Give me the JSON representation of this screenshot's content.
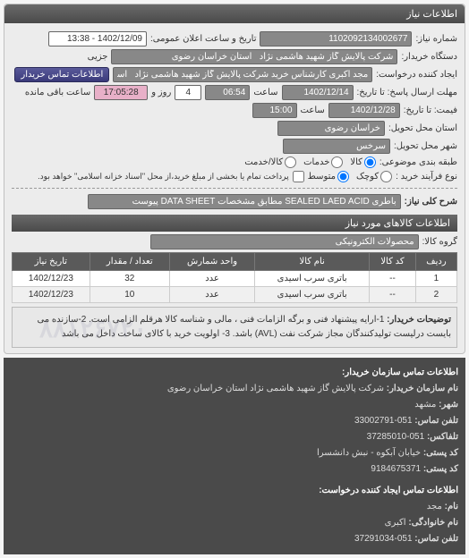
{
  "header": {
    "title": "اطلاعات نیاز"
  },
  "fields": {
    "req_no_label": "شماره نیاز:",
    "req_no": "1102092134002677",
    "announce_label": "تاریخ و ساعت اعلان عمومی:",
    "announce": "1402/12/09 - 13:38",
    "buyer_org_label": "دستگاه خریدار:",
    "buyer_org": "شرکت پالایش گاز شهید هاشمی نژاد   استان خراسان رضوی",
    "requester_label": "ایجاد کننده درخواست:",
    "requester": "مجد اکبری کارشناس خرید شرکت پالایش گاز شهید هاشمی نژاد   استان خرا",
    "contact_btn": "اطلاعات تماس خریدار",
    "deadline_resp_label": "مهلت ارسال پاسخ: تا تاریخ:",
    "deadline_resp_date": "1402/12/14",
    "deadline_resp_time_label": "ساعت",
    "deadline_resp_time": "06:54",
    "days_label": "روز و",
    "days": "4",
    "remain_label": "ساعت باقی مانده",
    "remain_time": "17:05:28",
    "deadline_price_label": "فیمت: تا تاریخ:",
    "deadline_price_date": "1402/12/28",
    "deadline_price_time_label": "ساعت",
    "deadline_price_time": "15:00",
    "delivery_province_label": "استان محل تحویل:",
    "delivery_province": "خراسان رضوی",
    "delivery_city_label": "شهر محل تحویل:",
    "delivery_city": "سرخس",
    "class_label": "طبقه بندی موضوعی:",
    "opt_kala": "کالا",
    "opt_khadamat": "خدمات",
    "opt_kala_khadamat": "کالا/خدمت",
    "process_label": "نوع فرآیند خرید :",
    "opt_small": "کوچک",
    "opt_medium": "متوسط",
    "process_note": "پرداخت تمام یا بخشی از مبلغ خرید،از محل \"اسناد خزانه اسلامی\" خواهد بود."
  },
  "need_title": {
    "label": "شرح کلی نیاز:",
    "value": "باطری SEALED LAED ACID مطابق مشخصات DATA SHEET پیوست"
  },
  "goods": {
    "section_title": "اطلاعات کالاهای مورد نیاز",
    "group_label": "گروه کالا:",
    "group_value": "محصولات الکترونیکی",
    "cols": [
      "ردیف",
      "کد کالا",
      "نام کالا",
      "واحد شمارش",
      "تعداد / مقدار",
      "تاریخ نیاز"
    ],
    "rows": [
      [
        "1",
        "--",
        "باتری سرب اسیدی",
        "عدد",
        "32",
        "1402/12/23"
      ],
      [
        "2",
        "--",
        "باتری سرب اسیدی",
        "عدد",
        "10",
        "1402/12/23"
      ]
    ]
  },
  "desc": {
    "label": "توضیحات خریدار:",
    "text": "1-ارایه پیشنهاد فنی و برگه الزامات فنی ، مالی و شناسه کالا هرقلم الزامی است. 2-سازنده می بایست درلیست تولیدکنندگان مجاز شرکت نفت (AVL) باشد. 3- اولویت خرید با کالای ساخت داخل می باشد"
  },
  "contact": {
    "title": "اطلاعات تماس سازمان خریدار:",
    "org_label": "نام سازمان خریدار:",
    "org": "شرکت پالایش گاز شهید هاشمی نژاد استان خراسان رضوی",
    "city_label": "شهر:",
    "city": "مشهد",
    "tel_label": "تلفن تماس:",
    "tel": "051-33002791",
    "fax_label": "تلفاکس:",
    "fax": "051-37285010",
    "postcode_label": "کد پستی:",
    "postcode": "خیابان آبکوه - نبش دانشسرا",
    "postcode2_label": "کد پستی:",
    "postcode2": "9184675371",
    "creator_title": "اطلاعات تماس ایجاد کننده درخواست:",
    "name_label": "نام:",
    "name": "مجد",
    "family_label": "نام خانوادگی:",
    "family": "اکبری",
    "tel2_label": "تلفن تماس:",
    "tel2": "051-37291034"
  },
  "watermark": "۸۸۱۲۶۷۲۰"
}
